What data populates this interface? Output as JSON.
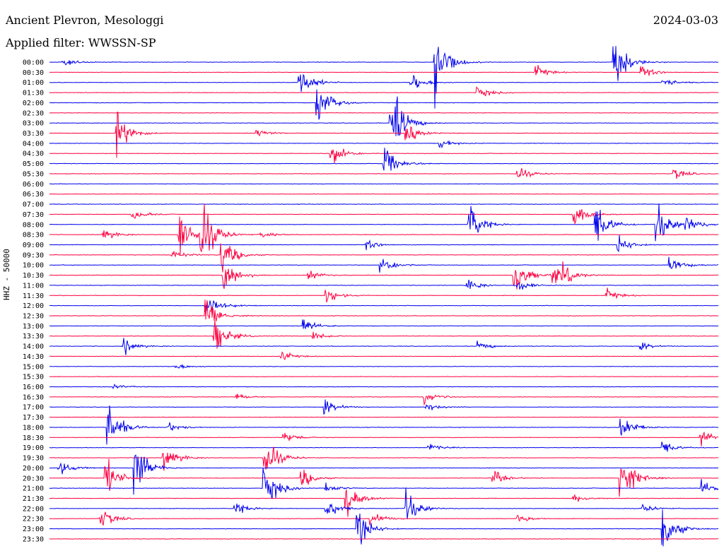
{
  "header": {
    "station": "Ancient Plevron, Mesologgi",
    "filter": "Applied filter: WWSSN-SP",
    "date": "2024-03-03"
  },
  "chart_data": {
    "type": "line",
    "title": "Ancient Plevron, Mesologgi",
    "subtitle": "Applied filter: WWSSN-SP",
    "ylabel": "HHZ - 50000",
    "date": "2024-03-03",
    "colors": [
      "#0000ee",
      "#ff0040"
    ],
    "rows": [
      "00:00",
      "00:30",
      "01:00",
      "01:30",
      "02:00",
      "02:30",
      "03:00",
      "03:30",
      "04:00",
      "04:30",
      "05:00",
      "05:30",
      "06:00",
      "06:30",
      "07:00",
      "07:30",
      "08:00",
      "08:30",
      "09:00",
      "09:30",
      "10:00",
      "10:30",
      "11:00",
      "11:30",
      "12:00",
      "12:30",
      "13:00",
      "13:30",
      "14:00",
      "14:30",
      "15:00",
      "15:30",
      "16:00",
      "16:30",
      "17:00",
      "17:30",
      "18:00",
      "18:30",
      "19:00",
      "19:30",
      "20:00",
      "20:30",
      "21:00",
      "21:30",
      "22:00",
      "22:30",
      "23:00",
      "23:30"
    ],
    "x_minutes": [
      0,
      30
    ],
    "events": [
      {
        "row": 0,
        "t": 0.6,
        "a": 0.5
      },
      {
        "row": 0,
        "t": 17.3,
        "a": 4.2
      },
      {
        "row": 0,
        "t": 25.3,
        "a": 3.5
      },
      {
        "row": 1,
        "t": 21.8,
        "a": 0.8
      },
      {
        "row": 1,
        "t": 26.5,
        "a": 0.9
      },
      {
        "row": 2,
        "t": 11.2,
        "a": 2.0
      },
      {
        "row": 2,
        "t": 16.2,
        "a": 1.2
      },
      {
        "row": 2,
        "t": 27.5,
        "a": 0.6
      },
      {
        "row": 3,
        "t": 19.2,
        "a": 0.8
      },
      {
        "row": 4,
        "t": 12.0,
        "a": 2.8
      },
      {
        "row": 6,
        "t": 15.3,
        "a": 5.0
      },
      {
        "row": 7,
        "t": 3.0,
        "a": 2.5
      },
      {
        "row": 7,
        "t": 9.3,
        "a": 0.5
      },
      {
        "row": 7,
        "t": 16.0,
        "a": 1.2
      },
      {
        "row": 8,
        "t": 17.5,
        "a": 0.6
      },
      {
        "row": 9,
        "t": 12.6,
        "a": 1.8
      },
      {
        "row": 10,
        "t": 15.0,
        "a": 2.2
      },
      {
        "row": 11,
        "t": 21.0,
        "a": 0.8
      },
      {
        "row": 11,
        "t": 28.0,
        "a": 0.7
      },
      {
        "row": 15,
        "t": 3.7,
        "a": 0.8
      },
      {
        "row": 15,
        "t": 23.5,
        "a": 1.8
      },
      {
        "row": 16,
        "t": 18.8,
        "a": 2.5
      },
      {
        "row": 16,
        "t": 24.5,
        "a": 2.6
      },
      {
        "row": 16,
        "t": 27.2,
        "a": 2.8
      },
      {
        "row": 16,
        "t": 28.5,
        "a": 1.2
      },
      {
        "row": 17,
        "t": 2.4,
        "a": 0.8
      },
      {
        "row": 17,
        "t": 5.8,
        "a": 3.0
      },
      {
        "row": 17,
        "t": 6.8,
        "a": 4.0
      },
      {
        "row": 17,
        "t": 9.5,
        "a": 0.4
      },
      {
        "row": 18,
        "t": 14.2,
        "a": 0.6
      },
      {
        "row": 18,
        "t": 25.5,
        "a": 1.2
      },
      {
        "row": 19,
        "t": 5.5,
        "a": 0.6
      },
      {
        "row": 19,
        "t": 7.7,
        "a": 2.5
      },
      {
        "row": 20,
        "t": 14.8,
        "a": 1.5
      },
      {
        "row": 20,
        "t": 27.8,
        "a": 1.2
      },
      {
        "row": 21,
        "t": 7.8,
        "a": 2.3
      },
      {
        "row": 21,
        "t": 11.6,
        "a": 0.6
      },
      {
        "row": 21,
        "t": 20.8,
        "a": 2.8
      },
      {
        "row": 21,
        "t": 22.5,
        "a": 1.2
      },
      {
        "row": 21,
        "t": 23.0,
        "a": 1.0
      },
      {
        "row": 22,
        "t": 18.7,
        "a": 0.8
      },
      {
        "row": 22,
        "t": 21.0,
        "a": 0.8
      },
      {
        "row": 23,
        "t": 12.4,
        "a": 1.0
      },
      {
        "row": 23,
        "t": 25.0,
        "a": 0.7
      },
      {
        "row": 24,
        "t": 7.0,
        "a": 2.0
      },
      {
        "row": 25,
        "t": 7.0,
        "a": 2.5
      },
      {
        "row": 26,
        "t": 11.4,
        "a": 0.8
      },
      {
        "row": 27,
        "t": 7.4,
        "a": 2.4
      },
      {
        "row": 27,
        "t": 11.8,
        "a": 0.6
      },
      {
        "row": 28,
        "t": 3.3,
        "a": 1.0
      },
      {
        "row": 28,
        "t": 19.2,
        "a": 0.6
      },
      {
        "row": 28,
        "t": 26.5,
        "a": 0.6
      },
      {
        "row": 29,
        "t": 10.4,
        "a": 0.6
      },
      {
        "row": 30,
        "t": 5.6,
        "a": 0.4
      },
      {
        "row": 32,
        "t": 2.9,
        "a": 0.3
      },
      {
        "row": 33,
        "t": 8.4,
        "a": 0.4
      },
      {
        "row": 33,
        "t": 16.8,
        "a": 0.8
      },
      {
        "row": 34,
        "t": 12.3,
        "a": 1.2
      },
      {
        "row": 34,
        "t": 16.9,
        "a": 0.5
      },
      {
        "row": 36,
        "t": 2.6,
        "a": 3.0
      },
      {
        "row": 36,
        "t": 5.3,
        "a": 0.6
      },
      {
        "row": 36,
        "t": 25.6,
        "a": 2.0
      },
      {
        "row": 37,
        "t": 10.5,
        "a": 0.8
      },
      {
        "row": 37,
        "t": 29.2,
        "a": 1.0
      },
      {
        "row": 38,
        "t": 17.0,
        "a": 0.5
      },
      {
        "row": 38,
        "t": 27.5,
        "a": 0.8
      },
      {
        "row": 39,
        "t": 5.1,
        "a": 2.0
      },
      {
        "row": 39,
        "t": 9.6,
        "a": 3.0
      },
      {
        "row": 40,
        "t": 0.4,
        "a": 1.0
      },
      {
        "row": 40,
        "t": 3.8,
        "a": 3.5
      },
      {
        "row": 41,
        "t": 2.5,
        "a": 2.5
      },
      {
        "row": 41,
        "t": 11.3,
        "a": 1.2
      },
      {
        "row": 41,
        "t": 19.9,
        "a": 1.0
      },
      {
        "row": 41,
        "t": 25.6,
        "a": 3.5
      },
      {
        "row": 42,
        "t": 9.6,
        "a": 3.0
      },
      {
        "row": 42,
        "t": 12.4,
        "a": 0.6
      },
      {
        "row": 42,
        "t": 29.2,
        "a": 1.0
      },
      {
        "row": 43,
        "t": 13.3,
        "a": 2.0
      },
      {
        "row": 43,
        "t": 23.5,
        "a": 0.5
      },
      {
        "row": 44,
        "t": 8.3,
        "a": 0.8
      },
      {
        "row": 44,
        "t": 12.4,
        "a": 1.3
      },
      {
        "row": 44,
        "t": 16.0,
        "a": 2.0
      },
      {
        "row": 44,
        "t": 26.6,
        "a": 0.5
      },
      {
        "row": 45,
        "t": 2.3,
        "a": 1.3
      },
      {
        "row": 45,
        "t": 14.4,
        "a": 1.0
      },
      {
        "row": 45,
        "t": 21.0,
        "a": 0.7
      },
      {
        "row": 46,
        "t": 13.8,
        "a": 2.5
      },
      {
        "row": 46,
        "t": 27.5,
        "a": 3.0
      }
    ]
  }
}
